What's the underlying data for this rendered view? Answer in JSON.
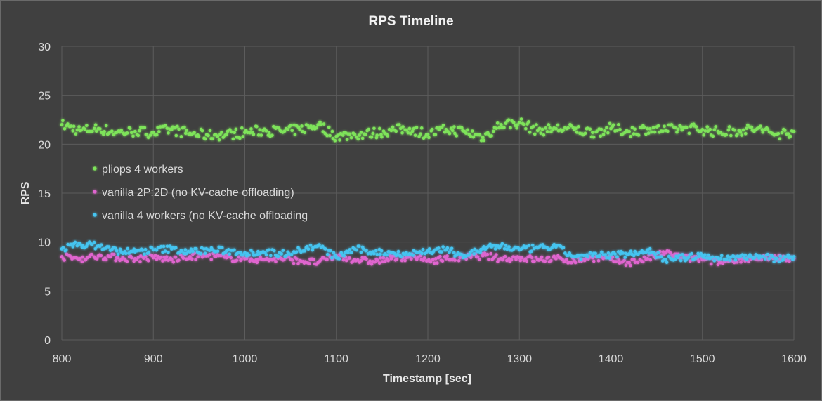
{
  "chart_data": {
    "type": "scatter",
    "title": "RPS Timeline",
    "xlabel": "Timestamp [sec]",
    "ylabel": "RPS",
    "xlim": [
      800,
      1600
    ],
    "ylim": [
      0,
      30
    ],
    "x_ticks": [
      800,
      900,
      1000,
      1100,
      1200,
      1300,
      1400,
      1500,
      1600
    ],
    "y_ticks": [
      0,
      5,
      10,
      15,
      20,
      25,
      30
    ],
    "grid": true,
    "legend_position": "left-middle",
    "series": [
      {
        "name": "pliops 4 workers",
        "color": "#7ee35a",
        "x": [
          800,
          820,
          840,
          860,
          880,
          900,
          920,
          940,
          960,
          980,
          1000,
          1020,
          1040,
          1060,
          1080,
          1100,
          1120,
          1140,
          1160,
          1180,
          1200,
          1220,
          1240,
          1260,
          1280,
          1300,
          1320,
          1340,
          1360,
          1380,
          1400,
          1420,
          1440,
          1460,
          1480,
          1500,
          1520,
          1540,
          1560,
          1580,
          1600
        ],
        "values": [
          22.0,
          21.4,
          21.6,
          21.2,
          21.3,
          21.2,
          21.5,
          21.1,
          20.9,
          21.0,
          21.2,
          21.4,
          21.3,
          21.5,
          22.0,
          20.8,
          21.0,
          21.1,
          21.4,
          21.6,
          21.0,
          21.5,
          21.3,
          20.7,
          22.0,
          22.2,
          21.4,
          21.6,
          21.5,
          21.2,
          21.6,
          21.3,
          21.6,
          21.4,
          21.7,
          21.5,
          21.2,
          21.4,
          21.6,
          21.0,
          21.3
        ]
      },
      {
        "name": "vanilla 2P:2D  (no KV-cache offloading)",
        "color": "#e065cf",
        "x": [
          800,
          820,
          840,
          860,
          880,
          900,
          920,
          940,
          960,
          980,
          1000,
          1020,
          1040,
          1060,
          1080,
          1100,
          1120,
          1140,
          1160,
          1180,
          1200,
          1220,
          1240,
          1260,
          1280,
          1300,
          1320,
          1340,
          1360,
          1380,
          1400,
          1420,
          1440,
          1460,
          1480,
          1500,
          1520,
          1540,
          1560,
          1580,
          1600
        ],
        "values": [
          8.5,
          8.3,
          8.6,
          8.4,
          8.3,
          8.4,
          8.2,
          8.5,
          8.6,
          8.4,
          8.3,
          8.2,
          8.3,
          8.1,
          7.9,
          8.6,
          8.2,
          8.0,
          8.3,
          8.5,
          8.1,
          8.3,
          8.4,
          8.6,
          8.3,
          8.4,
          8.2,
          8.3,
          8.1,
          8.4,
          8.2,
          7.9,
          8.3,
          8.9,
          8.4,
          8.2,
          7.9,
          8.3,
          8.2,
          8.4,
          8.3
        ]
      },
      {
        "name": "vanilla 4 workers (no KV-cache offloading",
        "color": "#45c4f0",
        "x": [
          800,
          820,
          840,
          860,
          880,
          900,
          920,
          940,
          960,
          980,
          1000,
          1020,
          1040,
          1060,
          1080,
          1100,
          1120,
          1140,
          1160,
          1180,
          1200,
          1220,
          1240,
          1260,
          1280,
          1300,
          1320,
          1340,
          1360,
          1380,
          1400,
          1420,
          1440,
          1460,
          1480,
          1500,
          1520,
          1540,
          1560,
          1580,
          1600
        ],
        "values": [
          9.3,
          9.8,
          9.6,
          9.1,
          9.0,
          9.2,
          9.3,
          9.0,
          9.2,
          9.1,
          8.9,
          9.0,
          8.8,
          9.2,
          9.6,
          8.4,
          9.3,
          9.0,
          8.9,
          8.8,
          9.1,
          9.2,
          8.6,
          9.3,
          9.6,
          9.2,
          9.4,
          9.5,
          8.5,
          8.6,
          8.7,
          8.8,
          9.2,
          8.2,
          8.4,
          8.6,
          8.3,
          8.5,
          8.6,
          8.3,
          8.5
        ]
      }
    ]
  }
}
